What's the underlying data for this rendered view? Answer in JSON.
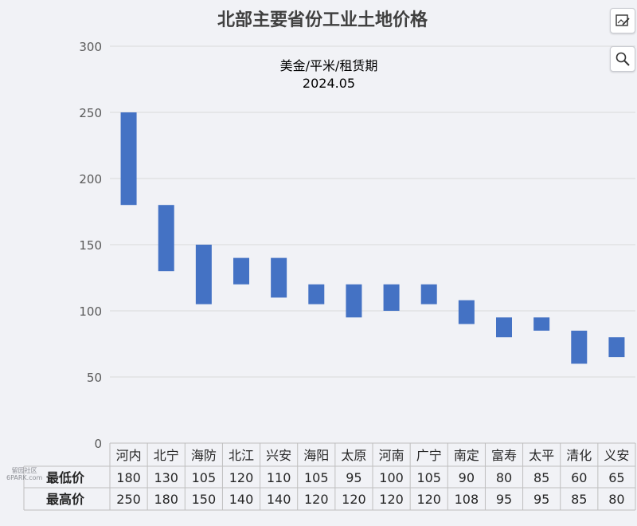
{
  "toolbar": {
    "edit_icon": "image-edit-icon",
    "search_icon": "search-icon"
  },
  "watermark": {
    "line1": "留园社区",
    "line2": "6PARK.com"
  },
  "chart_data": {
    "type": "bar",
    "subtype": "floating-range",
    "title": "北部主要省份工业土地价格",
    "subtitle_lines": [
      "美金/平米/租赁期",
      "2024.05"
    ],
    "xlabel": "",
    "ylabel": "",
    "ylim": [
      0,
      300
    ],
    "yticks": [
      0,
      50,
      100,
      150,
      200,
      250,
      300
    ],
    "grid": true,
    "bar_color": "#4472c4",
    "categories": [
      "河内",
      "北宁",
      "海防",
      "北江",
      "兴安",
      "海阳",
      "太原",
      "河南",
      "广宁",
      "南定",
      "富寿",
      "太平",
      "清化",
      "义安"
    ],
    "series": [
      {
        "name": "最低价",
        "values": [
          180,
          130,
          105,
          120,
          110,
          105,
          95,
          100,
          105,
          90,
          80,
          85,
          60,
          65
        ]
      },
      {
        "name": "最高价",
        "values": [
          250,
          180,
          150,
          140,
          140,
          120,
          120,
          120,
          120,
          108,
          95,
          95,
          85,
          80
        ]
      }
    ]
  }
}
